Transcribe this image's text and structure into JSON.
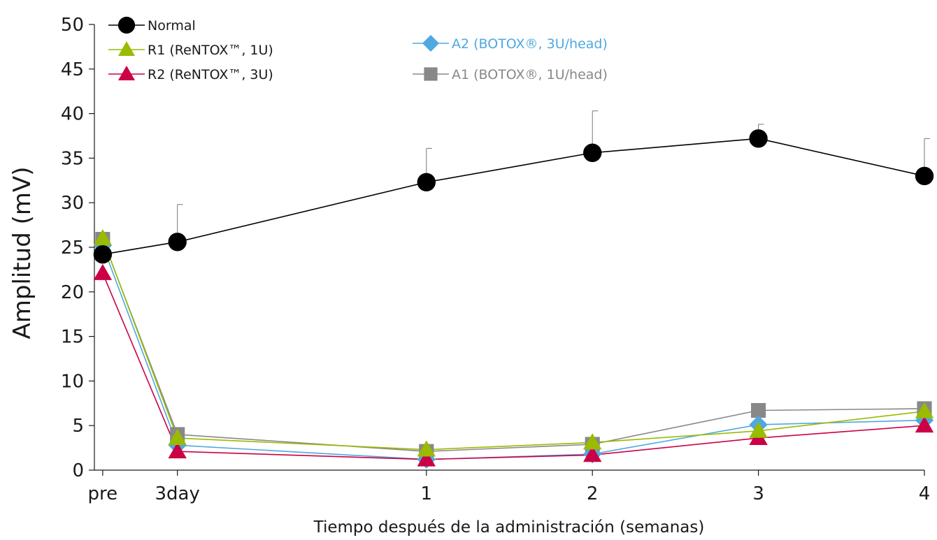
{
  "chart_data": {
    "type": "line",
    "title": "",
    "xlabel": "Tiempo después de la administración (semanas)",
    "ylabel": "Amplitud (mV)",
    "categories": [
      "pre",
      "3day",
      "1",
      "2",
      "3",
      "4"
    ],
    "x": [
      -0.95,
      -0.5,
      1,
      2,
      3,
      4
    ],
    "ylim": [
      0,
      50
    ],
    "yticks": [
      0,
      5,
      10,
      15,
      20,
      25,
      30,
      35,
      40,
      45,
      50
    ],
    "grid": false,
    "series": [
      {
        "name": "Normal",
        "values": [
          24.2,
          25.6,
          32.3,
          35.6,
          37.2,
          33.0
        ],
        "error": [
          0,
          4.2,
          3.8,
          4.7,
          1.6,
          4.2
        ],
        "color": "#000000",
        "marker": "circle"
      },
      {
        "name": "R1 (ReNTOX™, 1U)",
        "values": [
          26.0,
          3.6,
          2.3,
          3.1,
          4.4,
          6.6
        ],
        "color": "#99bb00",
        "marker": "triangle"
      },
      {
        "name": "R2 (ReNTOX™, 3U)",
        "values": [
          22.1,
          2.1,
          1.2,
          1.7,
          3.6,
          5.0
        ],
        "color": "#cc0044",
        "marker": "triangle"
      },
      {
        "name": "A2 (BOTOX®, 3U/head)",
        "values": [
          25.2,
          2.8,
          1.2,
          1.8,
          5.1,
          5.6
        ],
        "color": "#4fa8e0",
        "marker": "diamond"
      },
      {
        "name": "A1  (BOTOX®, 1U/head)",
        "values": [
          25.9,
          4.0,
          2.1,
          2.9,
          6.7,
          6.9
        ],
        "color": "#888888",
        "marker": "square"
      }
    ]
  }
}
